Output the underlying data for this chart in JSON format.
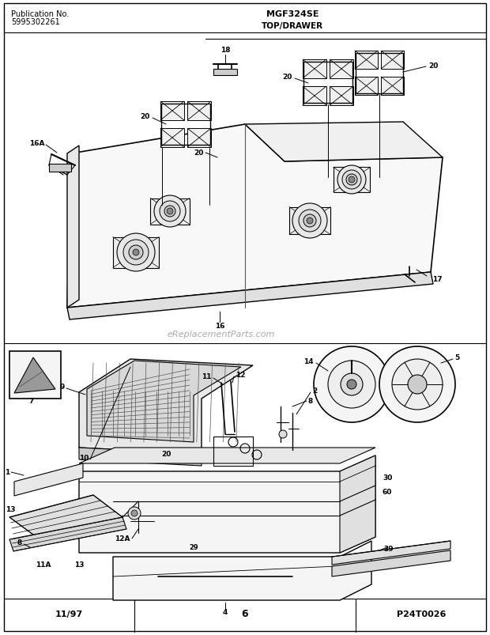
{
  "title_center": "MGF324SE",
  "subtitle_center": "TOP/DRAWER",
  "pub_line1": "Publication No.",
  "pub_line2": "5995302261",
  "footer_left": "11/97",
  "footer_center": "6",
  "footer_right": "P24T0026",
  "watermark": "eReplacementParts.com",
  "bg_color": "#ffffff",
  "fig_width": 6.2,
  "fig_height": 8.04,
  "dpi": 100
}
